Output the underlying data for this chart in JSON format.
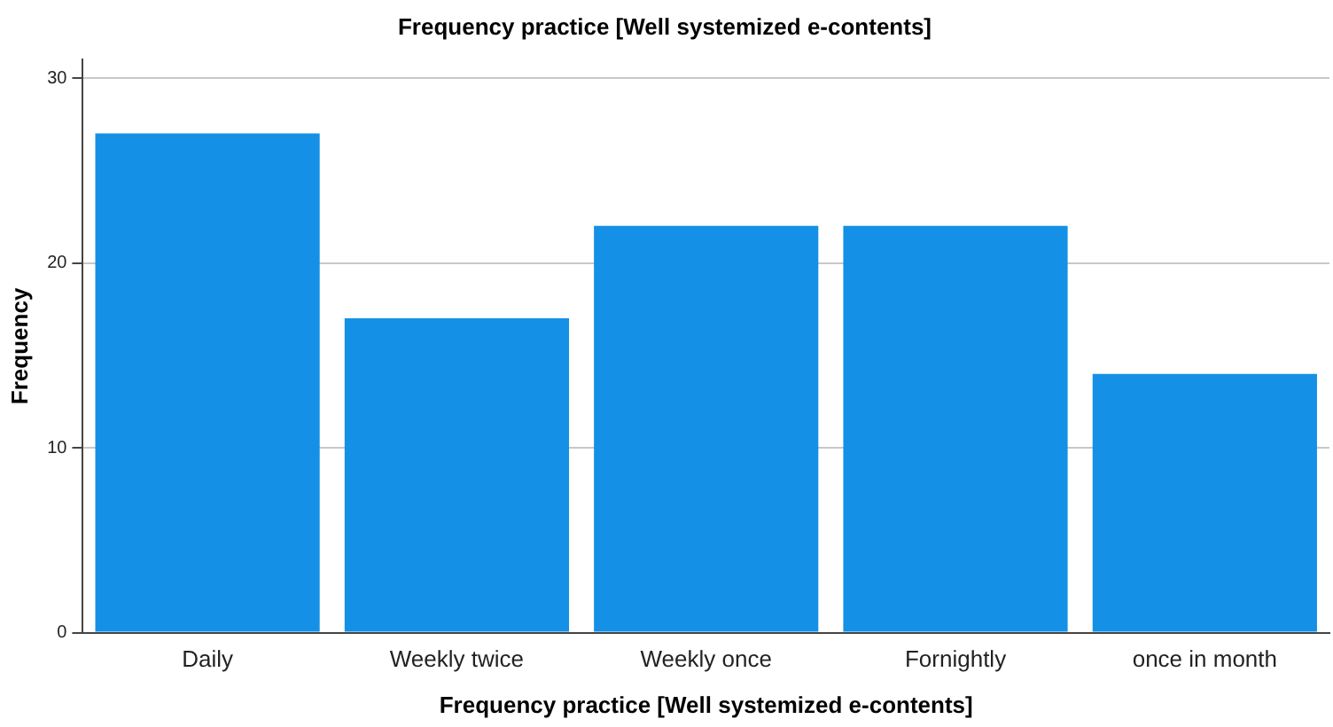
{
  "chart_data": {
    "type": "bar",
    "title": "Frequency practice [Well systemized e-contents]",
    "xlabel": "Frequency practice [Well systemized e-contents]",
    "ylabel": "Frequency",
    "categories": [
      "Daily",
      "Weekly twice",
      "Weekly once",
      "Fornightly",
      "once in month"
    ],
    "values": [
      27,
      17,
      22,
      22,
      14
    ],
    "color": "#1490e6",
    "ylim": [
      0,
      31
    ],
    "yticks": [
      0,
      10,
      20,
      30
    ],
    "grid": "y",
    "legend": false
  }
}
